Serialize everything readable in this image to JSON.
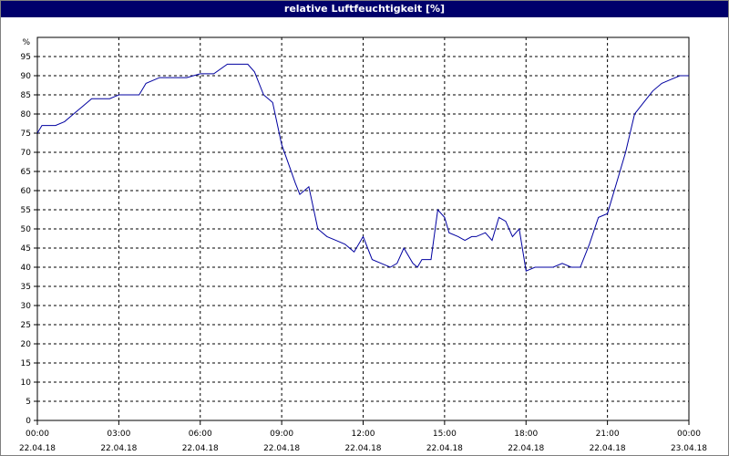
{
  "window": {
    "title": "relative Luftfeuchtigkeit [%]"
  },
  "chart_data": {
    "type": "line",
    "title": "relative Luftfeuchtigkeit [%]",
    "ylabel": "%",
    "xlabel": "",
    "ylim": [
      0,
      100
    ],
    "yticks": [
      0,
      5,
      10,
      15,
      20,
      25,
      30,
      35,
      40,
      45,
      50,
      55,
      60,
      65,
      70,
      75,
      80,
      85,
      90,
      95
    ],
    "xlim": [
      "22.04.18 00:00",
      "23.04.18 00:00"
    ],
    "xticks": [
      {
        "time": "00:00",
        "date": "22.04.18"
      },
      {
        "time": "03:00",
        "date": "22.04.18"
      },
      {
        "time": "06:00",
        "date": "22.04.18"
      },
      {
        "time": "09:00",
        "date": "22.04.18"
      },
      {
        "time": "12:00",
        "date": "22.04.18"
      },
      {
        "time": "15:00",
        "date": "22.04.18"
      },
      {
        "time": "18:00",
        "date": "22.04.18"
      },
      {
        "time": "21:00",
        "date": "22.04.18"
      },
      {
        "time": "00:00",
        "date": "23.04.18"
      }
    ],
    "grid": true,
    "line_color": "#0000a0",
    "series": [
      {
        "x": [
          "22.04.18 00:00",
          "22.04.18 00:10",
          "22.04.18 00:40",
          "22.04.18 01:00",
          "22.04.18 01:20",
          "22.04.18 01:40",
          "22.04.18 02:00",
          "22.04.18 02:20",
          "22.04.18 02:40",
          "22.04.18 03:00",
          "22.04.18 03:20",
          "22.04.18 03:30",
          "22.04.18 03:45",
          "22.04.18 04:00",
          "22.04.18 04:30",
          "22.04.18 05:00",
          "22.04.18 05:30",
          "22.04.18 06:00",
          "22.04.18 06:15",
          "22.04.18 06:30",
          "22.04.18 07:00",
          "22.04.18 07:10",
          "22.04.18 07:30",
          "22.04.18 07:45",
          "22.04.18 08:00",
          "22.04.18 08:20",
          "22.04.18 08:40",
          "22.04.18 09:00",
          "22.04.18 09:15",
          "22.04.18 09:30",
          "22.04.18 09:40",
          "22.04.18 10:00",
          "22.04.18 10:20",
          "22.04.18 10:40",
          "22.04.18 11:00",
          "22.04.18 11:20",
          "22.04.18 11:40",
          "22.04.18 12:00",
          "22.04.18 12:20",
          "22.04.18 12:40",
          "22.04.18 13:00",
          "22.04.18 13:15",
          "22.04.18 13:30",
          "22.04.18 13:50",
          "22.04.18 14:00",
          "22.04.18 14:10",
          "22.04.18 14:30",
          "22.04.18 14:45",
          "22.04.18 15:00",
          "22.04.18 15:10",
          "22.04.18 15:30",
          "22.04.18 15:45",
          "22.04.18 16:00",
          "22.04.18 16:10",
          "22.04.18 16:30",
          "22.04.18 16:45",
          "22.04.18 17:00",
          "22.04.18 17:15",
          "22.04.18 17:30",
          "22.04.18 17:45",
          "22.04.18 18:00",
          "22.04.18 18:20",
          "22.04.18 18:40",
          "22.04.18 19:00",
          "22.04.18 19:20",
          "22.04.18 19:40",
          "22.04.18 20:00",
          "22.04.18 20:20",
          "22.04.18 20:40",
          "22.04.18 21:00",
          "22.04.18 21:20",
          "22.04.18 21:40",
          "22.04.18 22:00",
          "22.04.18 22:20",
          "22.04.18 22:40",
          "22.04.18 23:00",
          "22.04.18 23:20",
          "22.04.18 23:40",
          "23.04.18 00:00"
        ],
        "y": [
          75,
          77,
          77,
          78,
          80,
          82,
          84,
          84,
          84,
          85,
          85,
          85,
          85,
          88,
          89.5,
          89.5,
          89.5,
          90.5,
          90.5,
          90.5,
          93,
          93,
          93,
          93,
          91,
          85,
          83,
          72,
          67,
          62,
          59,
          61,
          50,
          48,
          47,
          46,
          44,
          48,
          42,
          41,
          40,
          41,
          45,
          41,
          40,
          42,
          42,
          55,
          53,
          49,
          48,
          47,
          48,
          48,
          49,
          47,
          53,
          52,
          48,
          50,
          39,
          40,
          40,
          40,
          41,
          40,
          40,
          46,
          53,
          54,
          62,
          70,
          80,
          83,
          86,
          88,
          89,
          90,
          90
        ]
      }
    ]
  }
}
